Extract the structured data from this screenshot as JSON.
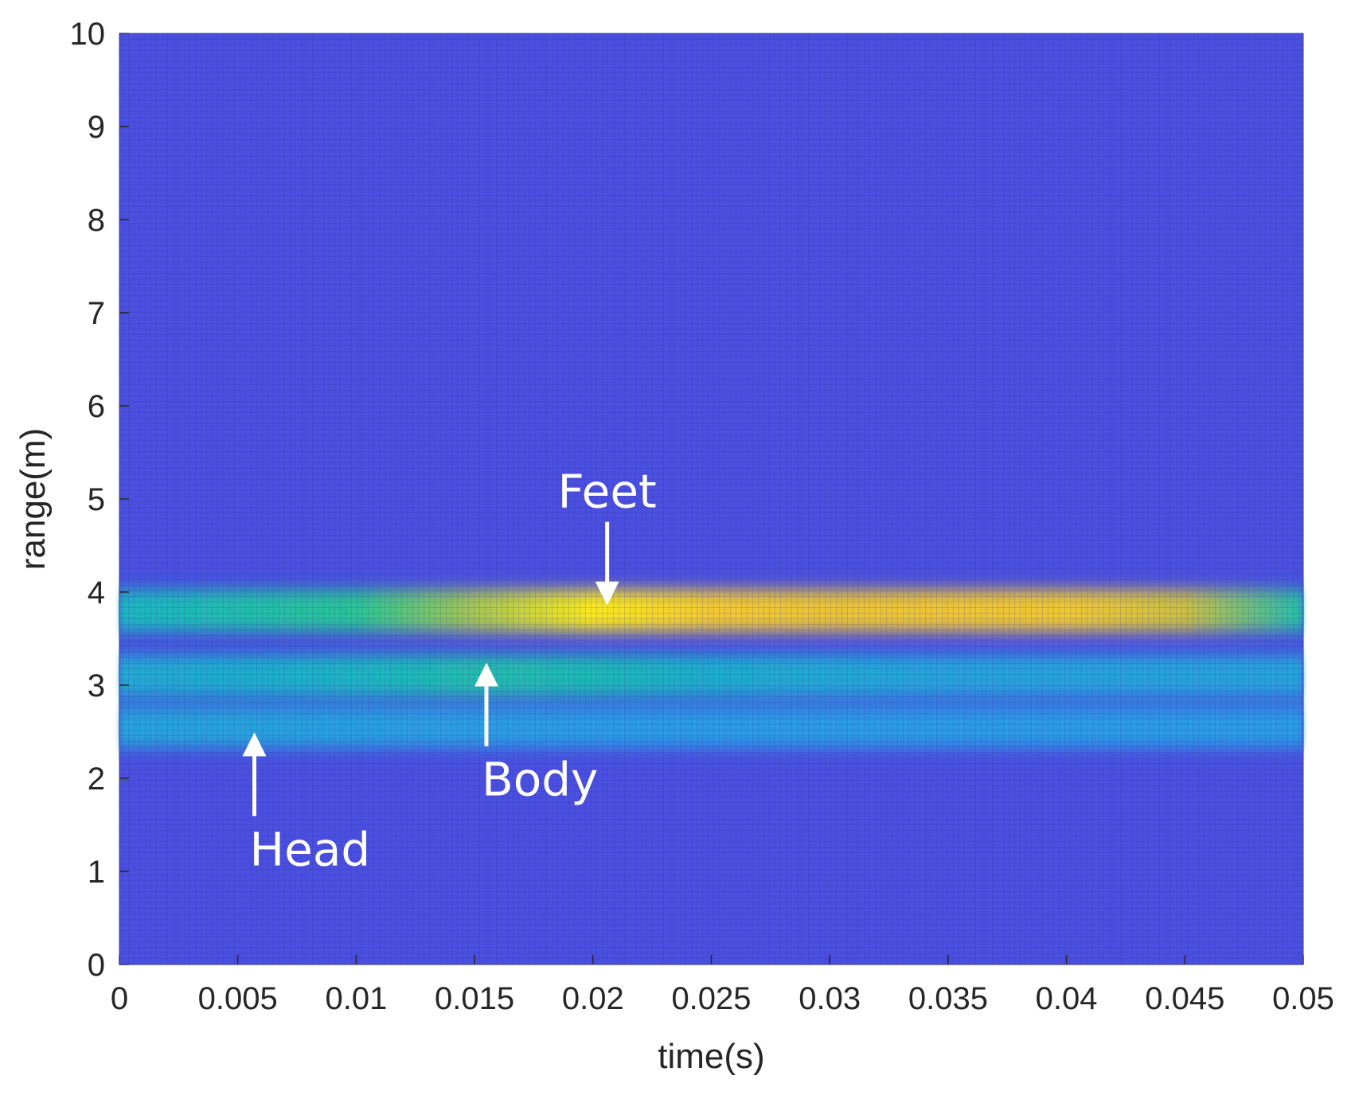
{
  "chart_data": {
    "type": "heatmap",
    "title": "",
    "xlabel": "time(s)",
    "ylabel": "range(m)",
    "xlim": [
      0,
      0.05
    ],
    "ylim": [
      0,
      10
    ],
    "x_ticks": [
      "0",
      "0.005",
      "0.01",
      "0.015",
      "0.02",
      "0.025",
      "0.03",
      "0.035",
      "0.04",
      "0.045",
      "0.05"
    ],
    "y_ticks": [
      "0",
      "1",
      "2",
      "3",
      "4",
      "5",
      "6",
      "7",
      "8",
      "9",
      "10"
    ],
    "x_tick_values": [
      0,
      0.005,
      0.01,
      0.015,
      0.02,
      0.025,
      0.03,
      0.035,
      0.04,
      0.045,
      0.05
    ],
    "y_tick_values": [
      0,
      1,
      2,
      3,
      4,
      5,
      6,
      7,
      8,
      9,
      10
    ],
    "colormap": [
      "#3e26a8",
      "#4a3fe0",
      "#4170fa",
      "#2f96ec",
      "#19b5c6",
      "#2ac592",
      "#8dca5c",
      "#e0bb3a",
      "#fbd12e",
      "#f9fb0e"
    ],
    "background_color": "#4a4fe0",
    "bands": [
      {
        "range": 3.8,
        "intensity": [
          0.45,
          0.5,
          0.55,
          0.7,
          0.95,
          0.85,
          0.82,
          0.83,
          0.84,
          0.75,
          0.5
        ]
      },
      {
        "range": 3.1,
        "intensity": [
          0.4,
          0.42,
          0.45,
          0.5,
          0.48,
          0.42,
          0.4,
          0.38,
          0.38,
          0.38,
          0.38
        ]
      },
      {
        "range": 2.55,
        "intensity": [
          0.38,
          0.38,
          0.37,
          0.36,
          0.35,
          0.35,
          0.35,
          0.35,
          0.35,
          0.35,
          0.35
        ]
      }
    ],
    "annotations": [
      {
        "text": "Feet",
        "x": 0.0206,
        "y": 3.9,
        "arrow": "down"
      },
      {
        "text": "Body",
        "x": 0.0155,
        "y": 3.2,
        "arrow": "up"
      },
      {
        "text": "Head",
        "x": 0.0057,
        "y": 2.45,
        "arrow": "up"
      }
    ]
  }
}
